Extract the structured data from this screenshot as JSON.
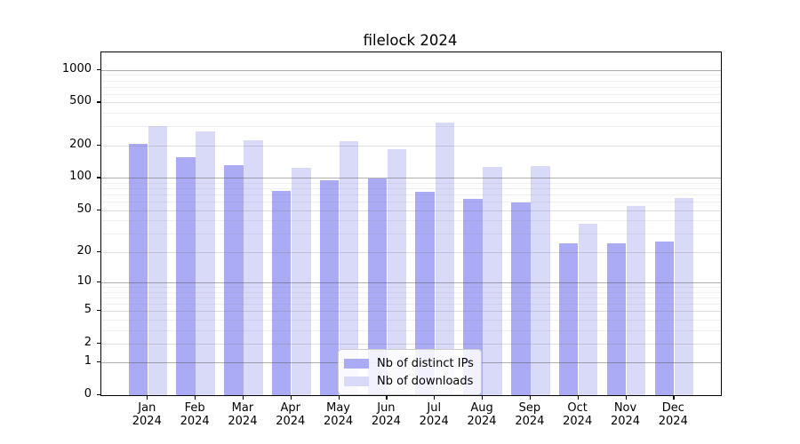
{
  "title": "filelock 2024",
  "chart_data": {
    "type": "bar",
    "title": "filelock 2024",
    "xlabel": "",
    "ylabel": "",
    "y_scale": "log1p (log-like, includes 0)",
    "y_ticks": [
      0,
      1,
      2,
      5,
      10,
      20,
      50,
      100,
      200,
      500,
      1000
    ],
    "ylim": [
      0,
      1450
    ],
    "grid": "horizontal major and minor gridlines",
    "legend_position": "lower center, inside plot",
    "months": [
      "Jan",
      "Feb",
      "Mar",
      "Apr",
      "May",
      "Jun",
      "Jul",
      "Aug",
      "Sep",
      "Oct",
      "Nov",
      "Dec"
    ],
    "year_label": "2024",
    "categories": [
      "Jan 2024",
      "Feb 2024",
      "Mar 2024",
      "Apr 2024",
      "May 2024",
      "Jun 2024",
      "Jul 2024",
      "Aug 2024",
      "Sep 2024",
      "Oct 2024",
      "Nov 2024",
      "Dec 2024"
    ],
    "series": [
      {
        "name": "Nb of distinct IPs",
        "color": "#aaaaf5",
        "values": [
          206,
          155,
          131,
          75,
          95,
          98,
          74,
          64,
          59,
          24,
          24,
          25
        ]
      },
      {
        "name": "Nb of downloads",
        "color": "#d9d9f8",
        "values": [
          300,
          270,
          224,
          125,
          220,
          185,
          325,
          127,
          130,
          37,
          55,
          65
        ]
      }
    ]
  }
}
